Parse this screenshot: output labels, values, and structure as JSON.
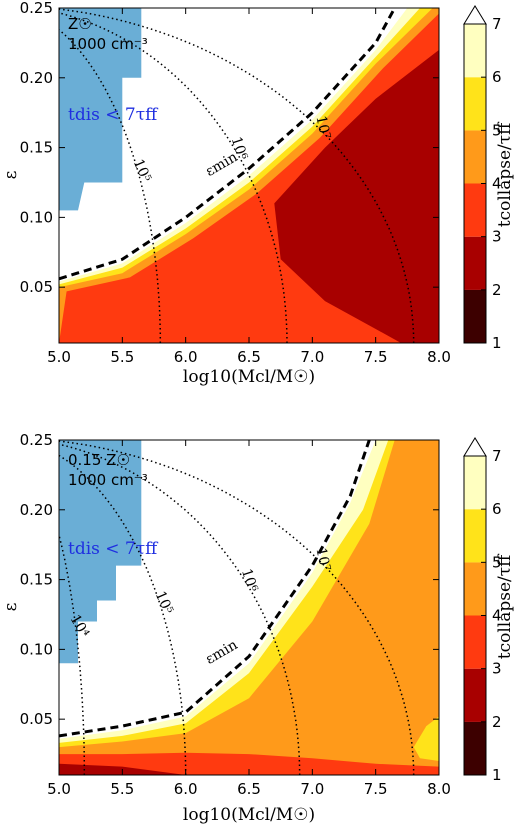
{
  "chart_data": [
    {
      "type": "heatmap",
      "xlabel": "log10(Mcl/M☉)",
      "ylabel": "ε",
      "xlim": [
        5.0,
        8.0
      ],
      "ylim": [
        0.01,
        0.25
      ],
      "x_ticks": [
        "5.0",
        "5.5",
        "6.0",
        "6.5",
        "7.0",
        "7.5",
        "8.0"
      ],
      "y_ticks": [
        "0.05",
        "0.10",
        "0.15",
        "0.20",
        "0.25"
      ],
      "annotation_line1": "Z☉",
      "annotation_line2": "1000 cm⁻³",
      "blue_region_label": "tdis < 7τff",
      "emin_label": "εmin",
      "contour_levels": [
        "10⁴",
        "10⁵",
        "10⁶",
        "10⁷"
      ],
      "contour_x_at_min_eps": [
        4.8,
        5.8,
        6.8,
        7.8
      ],
      "emin_curve": [
        [
          5.0,
          0.056
        ],
        [
          5.5,
          0.07
        ],
        [
          6.0,
          0.1
        ],
        [
          6.5,
          0.135
        ],
        [
          7.0,
          0.175
        ],
        [
          7.5,
          0.225
        ],
        [
          7.65,
          0.25
        ]
      ],
      "region_boundaries": {
        "band_6_7": [
          [
            5.0,
            0.054
          ],
          [
            5.5,
            0.067
          ],
          [
            6.0,
            0.096
          ],
          [
            6.5,
            0.13
          ],
          [
            7.0,
            0.17
          ],
          [
            7.5,
            0.22
          ],
          [
            7.75,
            0.25
          ]
        ],
        "band_5_6": [
          [
            5.0,
            0.052
          ],
          [
            5.5,
            0.064
          ],
          [
            6.0,
            0.092
          ],
          [
            6.5,
            0.125
          ],
          [
            7.0,
            0.165
          ],
          [
            7.5,
            0.215
          ],
          [
            7.85,
            0.25
          ]
        ],
        "band_4_5": [
          [
            5.0,
            0.05
          ],
          [
            5.5,
            0.06
          ],
          [
            6.0,
            0.088
          ],
          [
            6.5,
            0.12
          ],
          [
            7.0,
            0.16
          ],
          [
            7.5,
            0.21
          ],
          [
            7.95,
            0.25
          ]
        ],
        "dark_region": [
          [
            8.0,
            0.01
          ],
          [
            8.0,
            0.22
          ],
          [
            7.5,
            0.185
          ],
          [
            7.1,
            0.15
          ],
          [
            6.7,
            0.11
          ],
          [
            6.75,
            0.07
          ],
          [
            7.1,
            0.04
          ],
          [
            7.5,
            0.02
          ],
          [
            7.7,
            0.01
          ]
        ]
      },
      "dominant_value": "3-4",
      "blue_region": [
        [
          5.0,
          0.25
        ],
        [
          5.65,
          0.25
        ],
        [
          5.65,
          0.2
        ],
        [
          5.5,
          0.2
        ],
        [
          5.5,
          0.125
        ],
        [
          5.2,
          0.125
        ],
        [
          5.15,
          0.105
        ],
        [
          5.0,
          0.105
        ]
      ],
      "colorbar": {
        "label": "tcollapse/τff",
        "ticks": [
          "1",
          "2",
          "3",
          "4",
          "5",
          "6",
          "7"
        ],
        "levels": [
          1,
          2,
          3,
          4,
          5,
          6,
          7
        ],
        "colors": [
          "#3d0000",
          "#a80000",
          "#ff3a10",
          "#ff9a1a",
          "#ffe31a",
          "#ffffc0"
        ],
        "extend": "max"
      }
    },
    {
      "type": "heatmap",
      "xlabel": "log10(Mcl/M☉)",
      "ylabel": "ε",
      "xlim": [
        5.0,
        8.0
      ],
      "ylim": [
        0.01,
        0.25
      ],
      "x_ticks": [
        "5.0",
        "5.5",
        "6.0",
        "6.5",
        "7.0",
        "7.5",
        "8.0"
      ],
      "y_ticks": [
        "0.05",
        "0.10",
        "0.15",
        "0.20",
        "0.25"
      ],
      "annotation_line1": "0.15 Z☉",
      "annotation_line2": "1000 cm⁻³",
      "blue_region_label": "tdis < 7τff",
      "emin_label": "εmin",
      "contour_levels": [
        "10⁴",
        "10⁵",
        "10⁶",
        "10⁷"
      ],
      "contour_x_at_min_eps": [
        5.2,
        6.0,
        6.9,
        7.8
      ],
      "emin_curve": [
        [
          5.0,
          0.038
        ],
        [
          5.5,
          0.045
        ],
        [
          6.0,
          0.055
        ],
        [
          6.5,
          0.095
        ],
        [
          7.0,
          0.16
        ],
        [
          7.3,
          0.21
        ],
        [
          7.45,
          0.25
        ]
      ],
      "region_boundaries": {
        "band_6_7": [
          [
            5.0,
            0.036
          ],
          [
            5.5,
            0.042
          ],
          [
            6.0,
            0.052
          ],
          [
            6.5,
            0.09
          ],
          [
            7.0,
            0.155
          ],
          [
            7.3,
            0.205
          ],
          [
            7.5,
            0.25
          ]
        ],
        "band_5_6": [
          [
            5.0,
            0.033
          ],
          [
            5.5,
            0.038
          ],
          [
            6.0,
            0.047
          ],
          [
            6.5,
            0.083
          ],
          [
            7.0,
            0.145
          ],
          [
            7.4,
            0.2
          ],
          [
            7.6,
            0.25
          ]
        ],
        "band_4_5": [
          [
            5.0,
            0.03
          ],
          [
            5.5,
            0.034
          ],
          [
            6.0,
            0.04
          ],
          [
            6.5,
            0.065
          ],
          [
            7.0,
            0.12
          ],
          [
            7.45,
            0.19
          ],
          [
            7.65,
            0.25
          ]
        ],
        "band_3_4": [
          [
            5.0,
            0.025
          ],
          [
            5.5,
            0.025
          ],
          [
            6.0,
            0.026
          ],
          [
            6.5,
            0.025
          ],
          [
            7.0,
            0.022
          ],
          [
            7.5,
            0.018
          ],
          [
            8.0,
            0.016
          ]
        ],
        "band_2_3": [
          [
            5.0,
            0.018
          ],
          [
            5.5,
            0.016
          ],
          [
            6.0,
            0.01
          ]
        ],
        "yellow_patch": [
          [
            7.8,
            0.03
          ],
          [
            7.9,
            0.045
          ],
          [
            8.0,
            0.052
          ],
          [
            8.0,
            0.02
          ],
          [
            7.85,
            0.022
          ]
        ]
      },
      "dominant_value": "4-5",
      "blue_region": [
        [
          5.0,
          0.25
        ],
        [
          5.65,
          0.25
        ],
        [
          5.65,
          0.16
        ],
        [
          5.45,
          0.16
        ],
        [
          5.45,
          0.135
        ],
        [
          5.3,
          0.135
        ],
        [
          5.3,
          0.12
        ],
        [
          5.15,
          0.12
        ],
        [
          5.15,
          0.09
        ],
        [
          5.0,
          0.09
        ]
      ],
      "colorbar": {
        "label": "tcollapse/τff",
        "ticks": [
          "1",
          "2",
          "3",
          "4",
          "5",
          "6",
          "7"
        ],
        "levels": [
          1,
          2,
          3,
          4,
          5,
          6,
          7
        ],
        "colors": [
          "#3d0000",
          "#a80000",
          "#ff3a10",
          "#ff9a1a",
          "#ffe31a",
          "#ffffc0"
        ],
        "extend": "max"
      }
    }
  ]
}
